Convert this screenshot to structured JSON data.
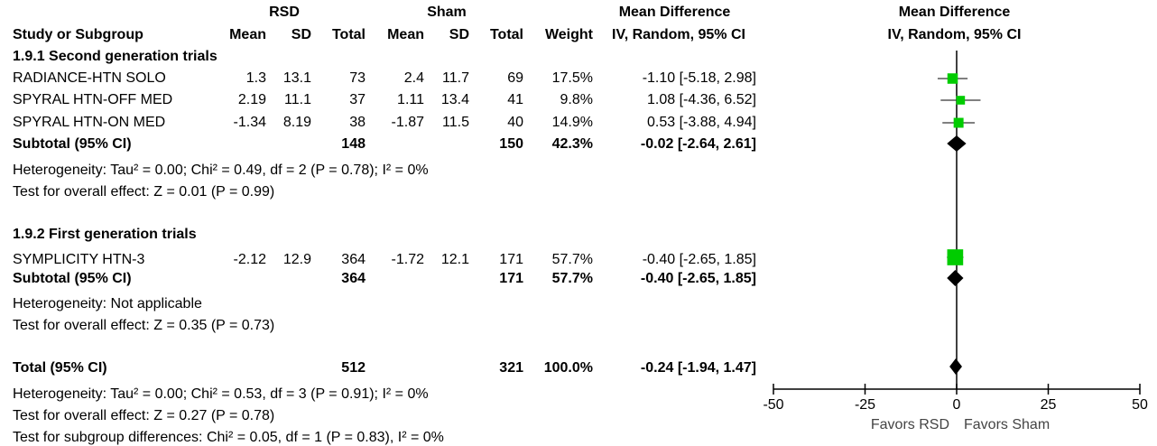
{
  "header": {
    "group1": "RSD",
    "group2": "Sham",
    "effect_title": "Mean Difference",
    "effect_method": "IV, Random, 95% CI",
    "plot_title": "Mean Difference",
    "plot_method": "IV, Random, 95% CI",
    "columns": {
      "study": "Study or Subgroup",
      "mean1": "Mean",
      "sd1": "SD",
      "total1": "Total",
      "mean2": "Mean",
      "sd2": "SD",
      "total2": "Total",
      "weight": "Weight"
    }
  },
  "subgroups": [
    {
      "title": "1.9.1 Second generation trials",
      "studies": [
        {
          "name": "RADIANCE-HTN SOLO",
          "mean1": "1.3",
          "sd1": "13.1",
          "total1": "73",
          "mean2": "2.4",
          "sd2": "11.7",
          "total2": "69",
          "weight": "17.5%",
          "ci_text": "-1.10 [-5.18, 2.98]"
        },
        {
          "name": "SPYRAL HTN-OFF MED",
          "mean1": "2.19",
          "sd1": "11.1",
          "total1": "37",
          "mean2": "1.11",
          "sd2": "13.4",
          "total2": "41",
          "weight": "9.8%",
          "ci_text": "1.08 [-4.36, 6.52]"
        },
        {
          "name": "SPYRAL HTN-ON MED",
          "mean1": "-1.34",
          "sd1": "8.19",
          "total1": "38",
          "mean2": "-1.87",
          "sd2": "11.5",
          "total2": "40",
          "weight": "14.9%",
          "ci_text": "0.53 [-3.88, 4.94]"
        }
      ],
      "subtotal": {
        "label": "Subtotal (95% CI)",
        "total1": "148",
        "total2": "150",
        "weight": "42.3%",
        "ci_text": "-0.02 [-2.64, 2.61]"
      },
      "heterogeneity": "Heterogeneity: Tau² = 0.00; Chi² = 0.49, df = 2 (P = 0.78); I² = 0%",
      "overall": "Test for overall effect: Z = 0.01 (P = 0.99)"
    },
    {
      "title": "1.9.2 First generation trials",
      "studies": [
        {
          "name": "SYMPLICITY HTN-3",
          "mean1": "-2.12",
          "sd1": "12.9",
          "total1": "364",
          "mean2": "-1.72",
          "sd2": "12.1",
          "total2": "171",
          "weight": "57.7%",
          "ci_text": "-0.40 [-2.65, 1.85]"
        }
      ],
      "subtotal": {
        "label": "Subtotal (95% CI)",
        "total1": "364",
        "total2": "171",
        "weight": "57.7%",
        "ci_text": "-0.40 [-2.65, 1.85]"
      },
      "heterogeneity": "Heterogeneity: Not applicable",
      "overall": "Test for overall effect: Z = 0.35 (P = 0.73)"
    }
  ],
  "total": {
    "label": "Total (95% CI)",
    "total1": "512",
    "total2": "321",
    "weight": "100.0%",
    "ci_text": "-0.24 [-1.94, 1.47]",
    "heterogeneity": "Heterogeneity: Tau² = 0.00; Chi² = 0.53, df = 3 (P = 0.91); I² = 0%",
    "overall": "Test for overall effect: Z = 0.27 (P = 0.78)",
    "subgroup_diff": "Test for subgroup differences: Chi² = 0.05, df = 1 (P = 0.83), I² = 0%"
  },
  "axis": {
    "favors_left": "Favors RSD",
    "favors_right": "Favors Sham"
  },
  "chart_data": {
    "type": "scatter",
    "title": "",
    "xlabel": "",
    "ylabel": "",
    "xlim": [
      -50,
      50
    ],
    "xticks": [
      -50,
      -25,
      0,
      25,
      50
    ],
    "tick_labels": [
      "-50",
      "-25",
      "0",
      "25",
      "50"
    ],
    "grid": false,
    "colors": {
      "study": "#00cc00",
      "diamond": "#000000",
      "line": "#000000"
    },
    "studies": [
      {
        "name": "RADIANCE-HTN SOLO",
        "md": -1.1,
        "lo": -5.18,
        "hi": 2.98,
        "weight": 17.5
      },
      {
        "name": "SPYRAL HTN-OFF MED",
        "md": 1.08,
        "lo": -4.36,
        "hi": 6.52,
        "weight": 9.8
      },
      {
        "name": "SPYRAL HTN-ON MED",
        "md": 0.53,
        "lo": -3.88,
        "hi": 4.94,
        "weight": 14.9
      },
      {
        "name": "SYMPLICITY HTN-3",
        "md": -0.4,
        "lo": -2.65,
        "hi": 1.85,
        "weight": 57.7
      }
    ],
    "pooled": [
      {
        "name": "Subtotal 1.9.1",
        "md": -0.02,
        "lo": -2.64,
        "hi": 2.61
      },
      {
        "name": "Subtotal 1.9.2",
        "md": -0.4,
        "lo": -2.65,
        "hi": 1.85
      },
      {
        "name": "Total",
        "md": -0.24,
        "lo": -1.94,
        "hi": 1.47
      }
    ]
  }
}
